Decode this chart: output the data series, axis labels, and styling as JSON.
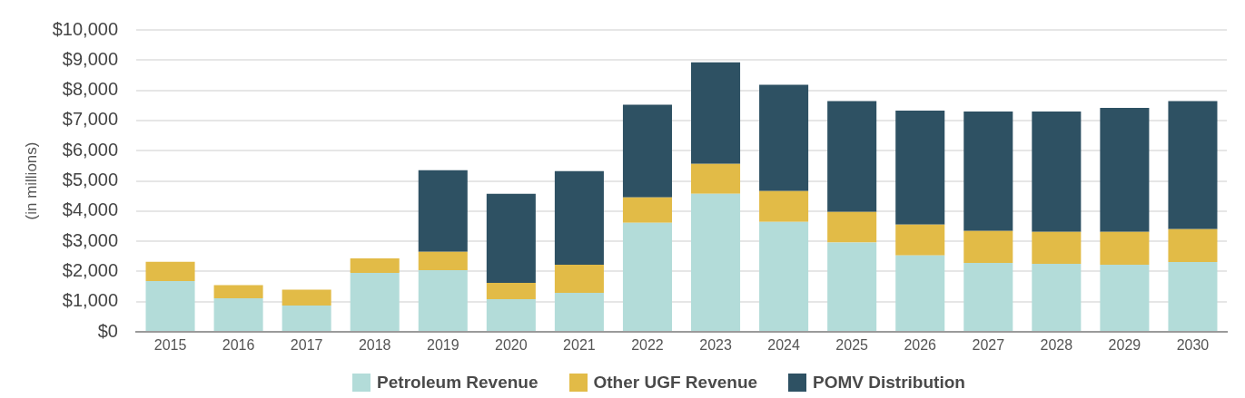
{
  "chart_data": {
    "type": "bar",
    "stacked": true,
    "ylabel": "(in millions)",
    "categories": [
      "2015",
      "2016",
      "2017",
      "2018",
      "2019",
      "2020",
      "2021",
      "2022",
      "2023",
      "2024",
      "2025",
      "2026",
      "2027",
      "2028",
      "2029",
      "2030"
    ],
    "series": [
      {
        "name": "Petroleum Revenue",
        "color": "#b3dcd9",
        "values": [
          1680,
          1110,
          870,
          1950,
          2040,
          1080,
          1290,
          3610,
          4570,
          3640,
          2960,
          2530,
          2280,
          2250,
          2220,
          2310
        ]
      },
      {
        "name": "Other UGF Revenue",
        "color": "#e2bb47",
        "values": [
          640,
          440,
          530,
          480,
          610,
          540,
          930,
          840,
          990,
          1020,
          1010,
          1020,
          1060,
          1060,
          1090,
          1090
        ]
      },
      {
        "name": "POMV Distribution",
        "color": "#2e5163",
        "values": [
          null,
          null,
          null,
          null,
          2700,
          2950,
          3100,
          3070,
          3370,
          3520,
          3670,
          3780,
          3960,
          3990,
          4110,
          4240
        ]
      }
    ],
    "ylim": [
      0,
      10000
    ],
    "yticks": [
      {
        "value": 0,
        "label": "$0"
      },
      {
        "value": 1000,
        "label": "$1,000"
      },
      {
        "value": 2000,
        "label": "$2,000"
      },
      {
        "value": 3000,
        "label": "$3,000"
      },
      {
        "value": 4000,
        "label": "$4,000"
      },
      {
        "value": 5000,
        "label": "$5,000"
      },
      {
        "value": 6000,
        "label": "$6,000"
      },
      {
        "value": 7000,
        "label": "$7,000"
      },
      {
        "value": 8000,
        "label": "$8,000"
      },
      {
        "value": 9000,
        "label": "$9,000"
      },
      {
        "value": 10000,
        "label": "$10,000"
      }
    ],
    "grid": "y",
    "legend": "bottom"
  }
}
